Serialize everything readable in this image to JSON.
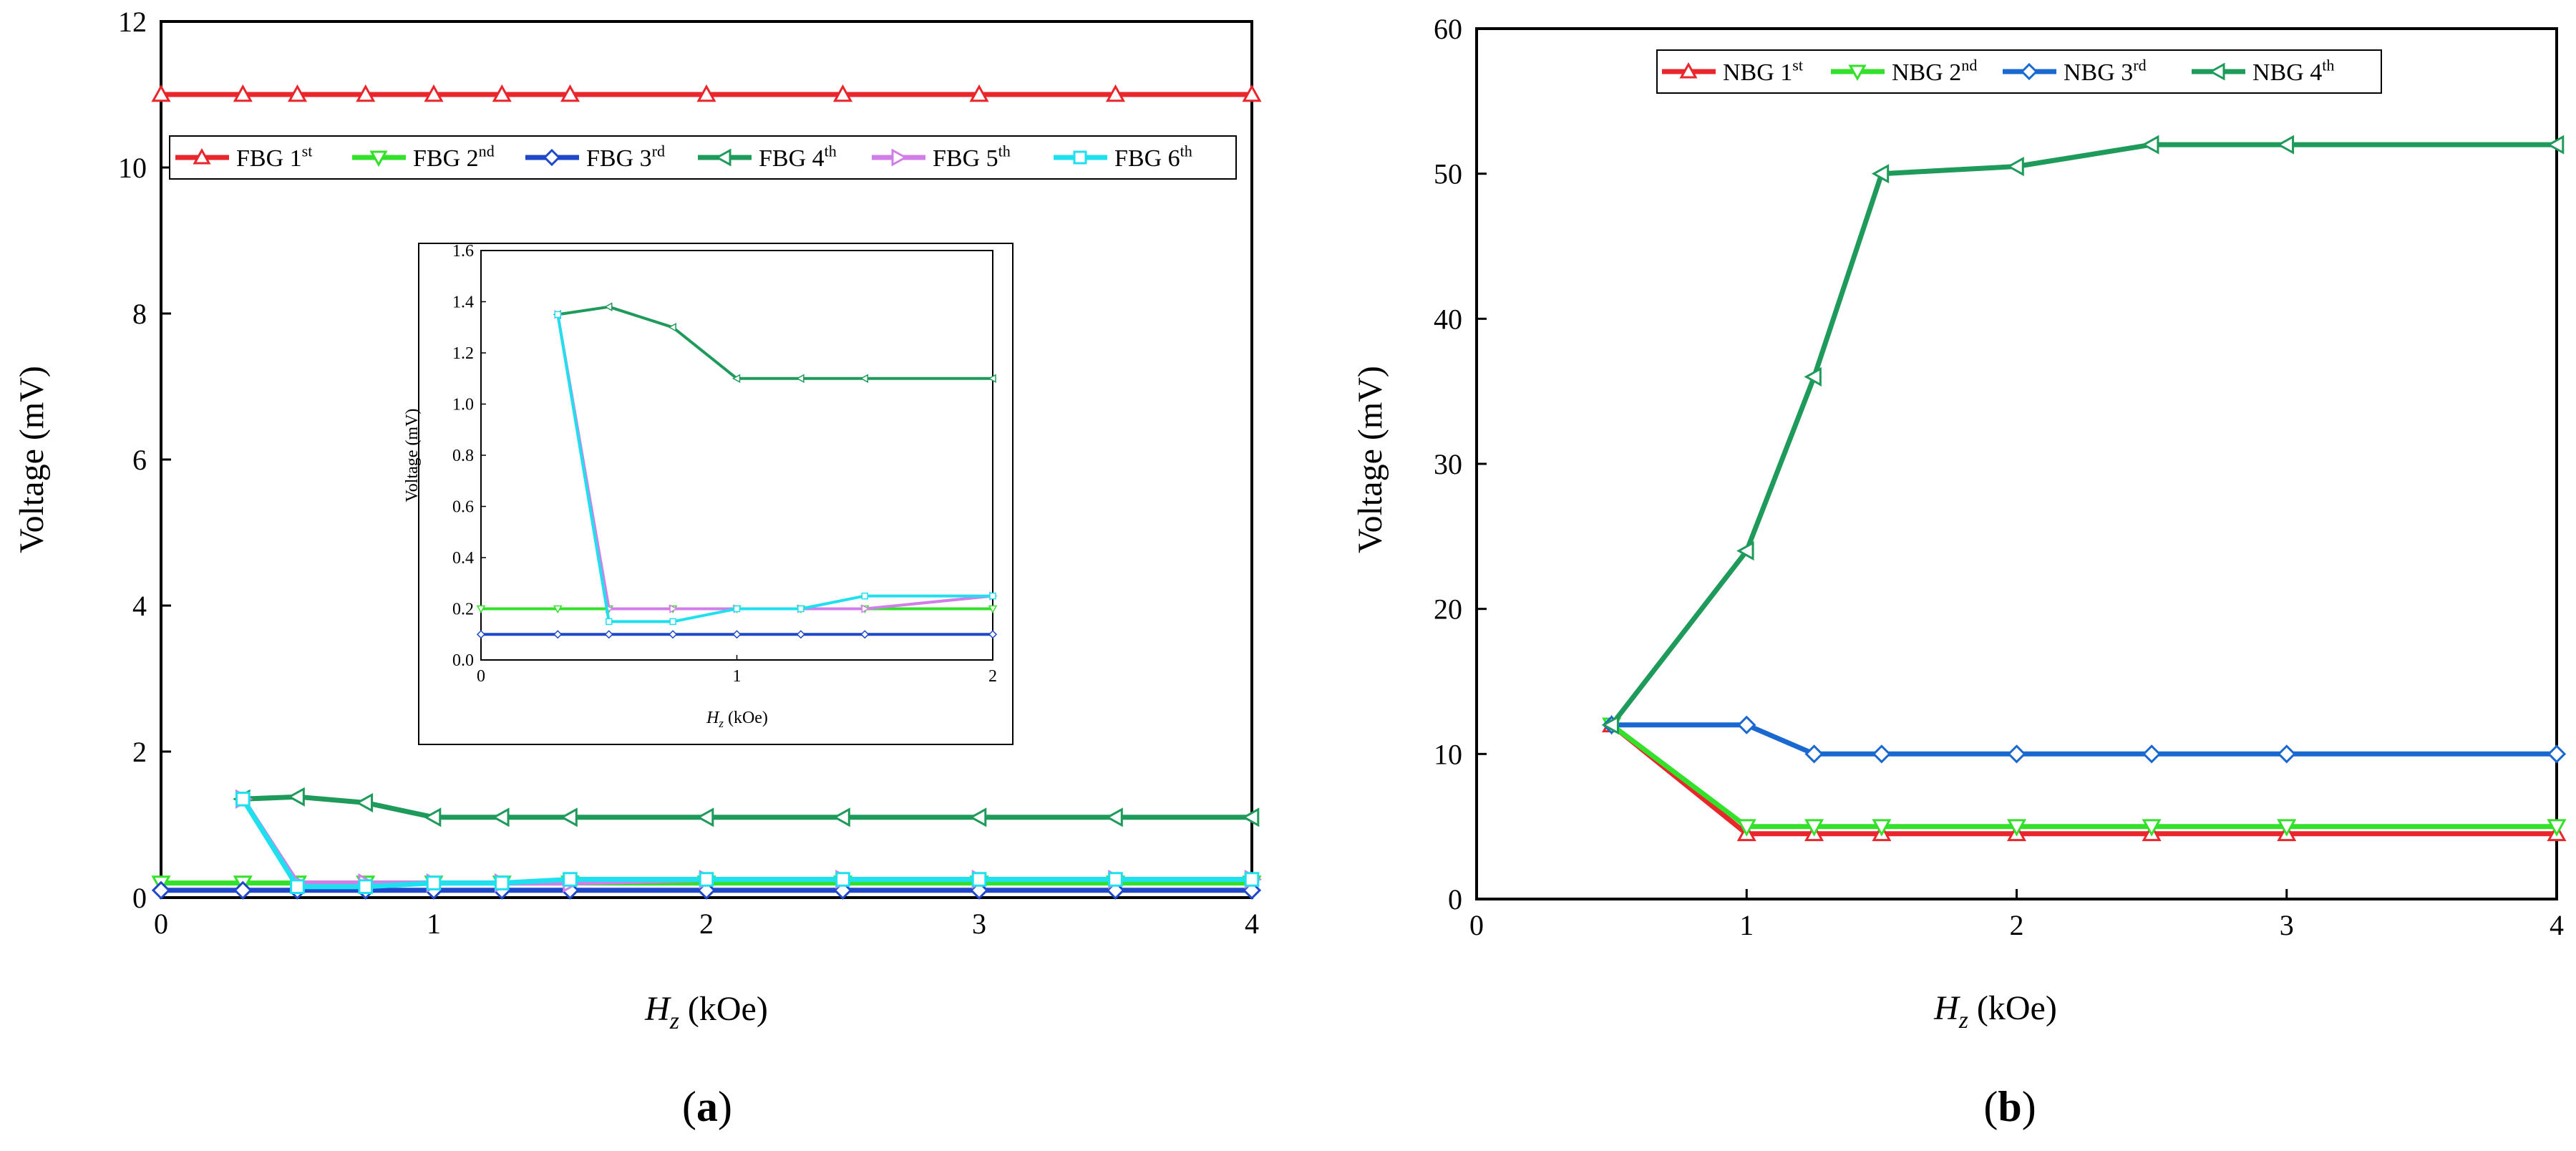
{
  "colors": {
    "red": "#e8262b",
    "green": "#33e02a",
    "blue": "#1f47c9",
    "darkgreen": "#1e9a5a",
    "pink": "#d27ee9",
    "cyan": "#1ee0ee",
    "nbg_blue": "#1a69d1"
  },
  "chart_data": [
    {
      "type": "line",
      "panel_label": "(a)",
      "panel_letter": "a",
      "xlabel_symbol": "H",
      "xlabel_sub": "z",
      "xlabel_unit": " (kOe)",
      "ylabel": "Voltage (mV)",
      "xlim": [
        0,
        4
      ],
      "ylim": [
        0,
        12
      ],
      "xticks": [
        0,
        1,
        2,
        3,
        4
      ],
      "yticks": [
        0,
        2,
        4,
        6,
        8,
        10,
        12
      ],
      "legend_position": "top",
      "series": [
        {
          "name": "FBG 1",
          "sup": "st",
          "color": "#e8262b",
          "marker": "triangle-up",
          "x": [
            0,
            0.3,
            0.5,
            0.75,
            1,
            1.25,
            1.5,
            2,
            2.5,
            3,
            3.5,
            4
          ],
          "y": [
            11,
            11,
            11,
            11,
            11,
            11,
            11,
            11,
            11,
            11,
            11,
            11
          ]
        },
        {
          "name": "FBG 2",
          "sup": "nd",
          "color": "#33e02a",
          "marker": "triangle-down",
          "x": [
            0,
            0.3,
            0.5,
            0.75,
            1,
            1.25,
            1.5,
            2,
            2.5,
            3,
            3.5,
            4
          ],
          "y": [
            0.2,
            0.2,
            0.2,
            0.2,
            0.2,
            0.2,
            0.2,
            0.2,
            0.2,
            0.2,
            0.2,
            0.2
          ]
        },
        {
          "name": "FBG 3",
          "sup": "rd",
          "color": "#1f47c9",
          "marker": "diamond",
          "x": [
            0,
            0.3,
            0.5,
            0.75,
            1,
            1.25,
            1.5,
            2,
            2.5,
            3,
            3.5,
            4
          ],
          "y": [
            0.1,
            0.1,
            0.1,
            0.1,
            0.1,
            0.1,
            0.1,
            0.1,
            0.1,
            0.1,
            0.1,
            0.1
          ]
        },
        {
          "name": "FBG 4",
          "sup": "th",
          "color": "#1e9a5a",
          "marker": "triangle-left",
          "x": [
            0.3,
            0.5,
            0.75,
            1,
            1.25,
            1.5,
            2,
            2.5,
            3,
            3.5,
            4
          ],
          "y": [
            1.35,
            1.38,
            1.3,
            1.1,
            1.1,
            1.1,
            1.1,
            1.1,
            1.1,
            1.1,
            1.1
          ]
        },
        {
          "name": "FBG 5",
          "sup": "th",
          "color": "#d27ee9",
          "marker": "triangle-right",
          "x": [
            0.3,
            0.5,
            0.75,
            1,
            1.25,
            1.5,
            2,
            2.5,
            3,
            3.5,
            4
          ],
          "y": [
            1.35,
            0.2,
            0.2,
            0.2,
            0.2,
            0.2,
            0.25,
            0.25,
            0.25,
            0.25,
            0.25
          ]
        },
        {
          "name": "FBG 6",
          "sup": "th",
          "color": "#1ee0ee",
          "marker": "square",
          "x": [
            0.3,
            0.5,
            0.75,
            1,
            1.25,
            1.5,
            2,
            2.5,
            3,
            3.5,
            4
          ],
          "y": [
            1.35,
            0.15,
            0.15,
            0.2,
            0.2,
            0.25,
            0.25,
            0.25,
            0.25,
            0.25,
            0.25
          ]
        }
      ],
      "inset": {
        "xlabel_symbol": "H",
        "xlabel_sub": "z",
        "xlabel_unit": " (kOe)",
        "ylabel": "Voltage (mV)",
        "xlim": [
          0,
          2
        ],
        "ylim": [
          0,
          1.6
        ],
        "xticks": [
          0,
          1,
          2
        ],
        "yticks": [
          0.0,
          0.2,
          0.4,
          0.6,
          0.8,
          1.0,
          1.2,
          1.4,
          1.6
        ],
        "ytick_labels": [
          "0.0",
          "0.2",
          "0.4",
          "0.6",
          "0.8",
          "1.0",
          "1.2",
          "1.4",
          "1.6"
        ],
        "series": [
          {
            "color": "#33e02a",
            "marker": "triangle-down",
            "x": [
              0,
              0.3,
              0.5,
              0.75,
              1,
              1.25,
              1.5,
              2
            ],
            "y": [
              0.2,
              0.2,
              0.2,
              0.2,
              0.2,
              0.2,
              0.2,
              0.2
            ]
          },
          {
            "color": "#1f47c9",
            "marker": "diamond",
            "x": [
              0,
              0.3,
              0.5,
              0.75,
              1,
              1.25,
              1.5,
              2
            ],
            "y": [
              0.1,
              0.1,
              0.1,
              0.1,
              0.1,
              0.1,
              0.1,
              0.1
            ]
          },
          {
            "color": "#1e9a5a",
            "marker": "triangle-left",
            "x": [
              0.3,
              0.5,
              0.75,
              1,
              1.25,
              1.5,
              2
            ],
            "y": [
              1.35,
              1.38,
              1.3,
              1.1,
              1.1,
              1.1,
              1.1
            ]
          },
          {
            "color": "#d27ee9",
            "marker": "triangle-right",
            "x": [
              0.3,
              0.5,
              0.75,
              1,
              1.25,
              1.5,
              2
            ],
            "y": [
              1.35,
              0.2,
              0.2,
              0.2,
              0.2,
              0.2,
              0.25
            ]
          },
          {
            "color": "#1ee0ee",
            "marker": "square",
            "x": [
              0.3,
              0.5,
              0.75,
              1,
              1.25,
              1.5,
              2
            ],
            "y": [
              1.35,
              0.15,
              0.15,
              0.2,
              0.2,
              0.25,
              0.25
            ]
          }
        ]
      }
    },
    {
      "type": "line",
      "panel_label": "(b)",
      "panel_letter": "b",
      "xlabel_symbol": "H",
      "xlabel_sub": "z",
      "xlabel_unit": " (kOe)",
      "ylabel": "Voltage (mV)",
      "xlim": [
        0,
        4
      ],
      "ylim": [
        0,
        60
      ],
      "xticks": [
        0,
        1,
        2,
        3,
        4
      ],
      "yticks": [
        0,
        10,
        20,
        30,
        40,
        50,
        60
      ],
      "legend_position": "top",
      "series": [
        {
          "name": "NBG 1",
          "sup": "st",
          "color": "#e8262b",
          "marker": "triangle-up",
          "x": [
            0.5,
            1,
            1.25,
            1.5,
            2,
            2.5,
            3,
            4
          ],
          "y": [
            12,
            4.5,
            4.5,
            4.5,
            4.5,
            4.5,
            4.5,
            4.5
          ]
        },
        {
          "name": "NBG 2",
          "sup": "nd",
          "color": "#33e02a",
          "marker": "triangle-down",
          "x": [
            0.5,
            1,
            1.25,
            1.5,
            2,
            2.5,
            3,
            4
          ],
          "y": [
            12,
            5,
            5,
            5,
            5,
            5,
            5,
            5
          ]
        },
        {
          "name": "NBG 3",
          "sup": "rd",
          "color": "#1a69d1",
          "marker": "diamond",
          "x": [
            0.5,
            1,
            1.25,
            1.5,
            2,
            2.5,
            3,
            4
          ],
          "y": [
            12,
            12,
            10,
            10,
            10,
            10,
            10,
            10
          ]
        },
        {
          "name": "NBG 4",
          "sup": "th",
          "color": "#1e9a5a",
          "marker": "triangle-left",
          "x": [
            0.5,
            1,
            1.25,
            1.5,
            2,
            2.5,
            3,
            4
          ],
          "y": [
            12,
            24,
            36,
            50,
            50.5,
            52,
            52,
            52
          ]
        }
      ]
    }
  ]
}
